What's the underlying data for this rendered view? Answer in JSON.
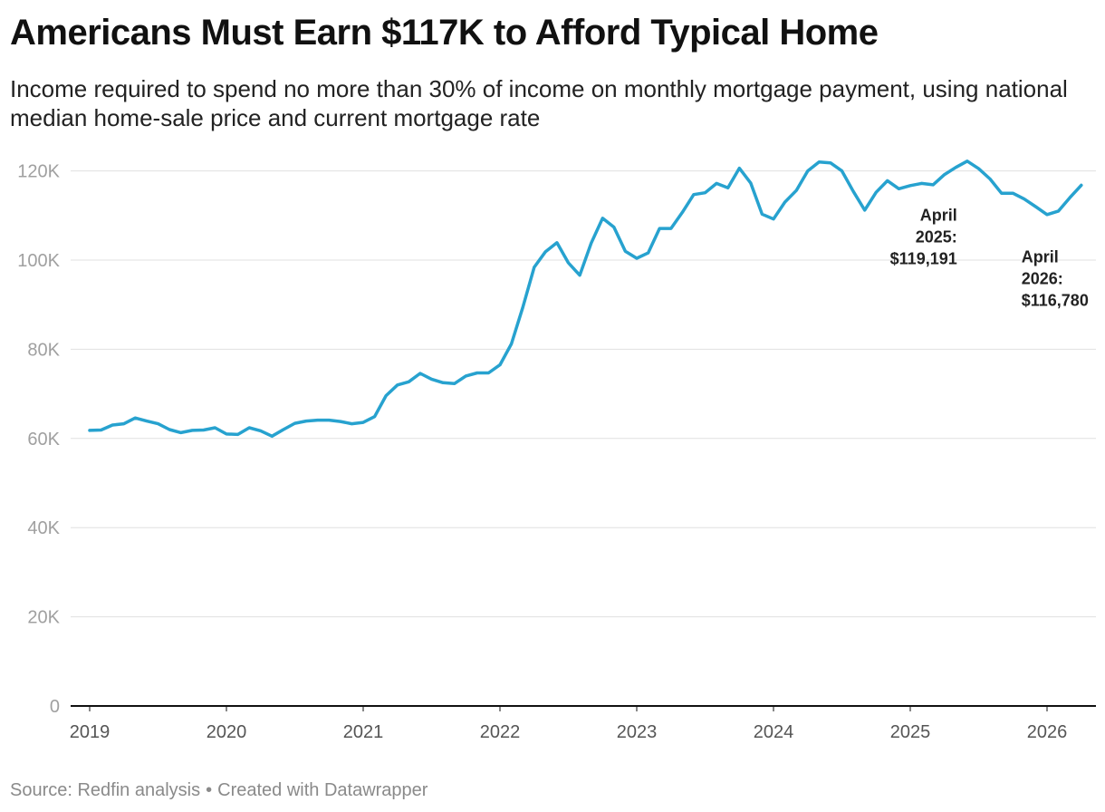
{
  "title": "Americans Must Earn $117K to Afford Typical Home",
  "subtitle": "Income required to spend no more than 30% of income on monthly mortgage payment, using national median home-sale price and current mortgage rate",
  "source": "Source: Redfin analysis",
  "credit": "Created with Datawrapper",
  "separator": "•",
  "colors": {
    "line": "#27a2cf",
    "grid": "#e0e0e0",
    "axis": "#111111"
  },
  "chart_data": {
    "type": "line",
    "title": "Americans Must Earn $117K to Afford Typical Home",
    "ylim": [
      0,
      120000
    ],
    "yticks": [
      {
        "value": 0,
        "label": "0"
      },
      {
        "value": 20000,
        "label": "20K"
      },
      {
        "value": 40000,
        "label": "40K"
      },
      {
        "value": 60000,
        "label": "60K"
      },
      {
        "value": 80000,
        "label": "80K"
      },
      {
        "value": 100000,
        "label": "100K"
      },
      {
        "value": 120000,
        "label": "120K"
      }
    ],
    "xticks": [
      "2019",
      "2020",
      "2021",
      "2022",
      "2023",
      "2024",
      "2025",
      "2026"
    ],
    "grid": true,
    "x_start": "2019-01",
    "x_end": "2026-04",
    "series": [
      {
        "values": [
          61800,
          61900,
          63000,
          63300,
          64600,
          63900,
          63300,
          62000,
          61300,
          61800,
          61900,
          62400,
          61000,
          60900,
          62400,
          61700,
          60500,
          62000,
          63400,
          63900,
          64100,
          64100,
          63800,
          63300,
          63600,
          64900,
          69600,
          72000,
          72700,
          74600,
          73300,
          72500,
          72300,
          74000,
          74700,
          74700,
          76500,
          81200,
          89400,
          98400,
          101900,
          103900,
          99400,
          96600,
          103800,
          109400,
          107400,
          102000,
          100400,
          101600,
          107100,
          107100,
          110700,
          114700,
          115100,
          117200,
          116200,
          120600,
          117300,
          110300,
          109200,
          113000,
          115600,
          120000,
          122000,
          121800,
          120000,
          115400,
          111200,
          115200,
          117800,
          116000,
          116700,
          117200,
          116900,
          119191,
          120800,
          122200,
          120500,
          118200,
          115000,
          115000,
          113700,
          112000,
          110200,
          111000,
          114000,
          116780
        ]
      }
    ],
    "annotations": [
      {
        "lines": [
          "April",
          "2025:",
          "$119,191"
        ],
        "x": "2025-04",
        "value": 119191
      },
      {
        "lines": [
          "April",
          "2026:",
          "$116,780"
        ],
        "x": "2026-04",
        "value": 116780
      }
    ]
  }
}
